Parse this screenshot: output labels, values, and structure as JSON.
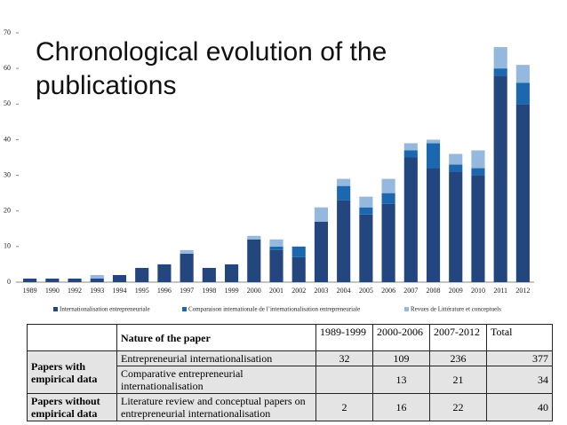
{
  "chart_data": {
    "type": "bar",
    "stacked": true,
    "title": "Chronological evolution of the publications",
    "categories": [
      "1989",
      "1990",
      "1992",
      "1993",
      "1994",
      "1995",
      "1996",
      "1997",
      "1998",
      "1999",
      "2000",
      "2001",
      "2002",
      "2003",
      "2004",
      "2005",
      "2006",
      "2007",
      "2008",
      "2009",
      "2010",
      "2011",
      "2012"
    ],
    "series": [
      {
        "name": "Internationalisation entrepreneuriale",
        "color": "#23467e",
        "values": [
          1,
          1,
          1,
          1,
          2,
          4,
          5,
          8,
          4,
          5,
          12,
          9,
          7,
          17,
          23,
          19,
          22,
          35,
          32,
          31,
          30,
          58,
          50
        ]
      },
      {
        "name": "Comparaison internationale de l’internationalisation entrepreneuriale",
        "color": "#1c68b0",
        "values": [
          0,
          0,
          0,
          0,
          0,
          0,
          0,
          0,
          0,
          0,
          0,
          1,
          3,
          0,
          4,
          2,
          3,
          2,
          7,
          2,
          2,
          2,
          6
        ]
      },
      {
        "name": "Revues de Littérature et conceptuels",
        "color": "#94b8de",
        "values": [
          0,
          0,
          0,
          1,
          0,
          0,
          0,
          1,
          0,
          0,
          1,
          2,
          0,
          4,
          2,
          3,
          4,
          2,
          1,
          3,
          5,
          6,
          5
        ]
      }
    ],
    "ylim": [
      0,
      70
    ],
    "yticks": [
      0,
      10,
      20,
      30,
      40,
      50,
      60,
      70
    ]
  },
  "table": {
    "header": [
      "Nature of the paper",
      "1989-1999",
      "2000-2006",
      "2007-2012",
      "Total"
    ],
    "groups": [
      {
        "label": "Papers with empirical data",
        "rows": [
          [
            "Entrepreneurial internationalisation",
            32,
            109,
            236,
            377
          ],
          [
            "Comparative entrepreneurial internationalisation",
            null,
            13,
            21,
            34
          ]
        ]
      },
      {
        "label": "Papers without empirical data",
        "rows": [
          [
            "Literature review and conceptual papers on entrepreneurial internationalisation",
            2,
            16,
            22,
            40
          ]
        ]
      }
    ]
  }
}
